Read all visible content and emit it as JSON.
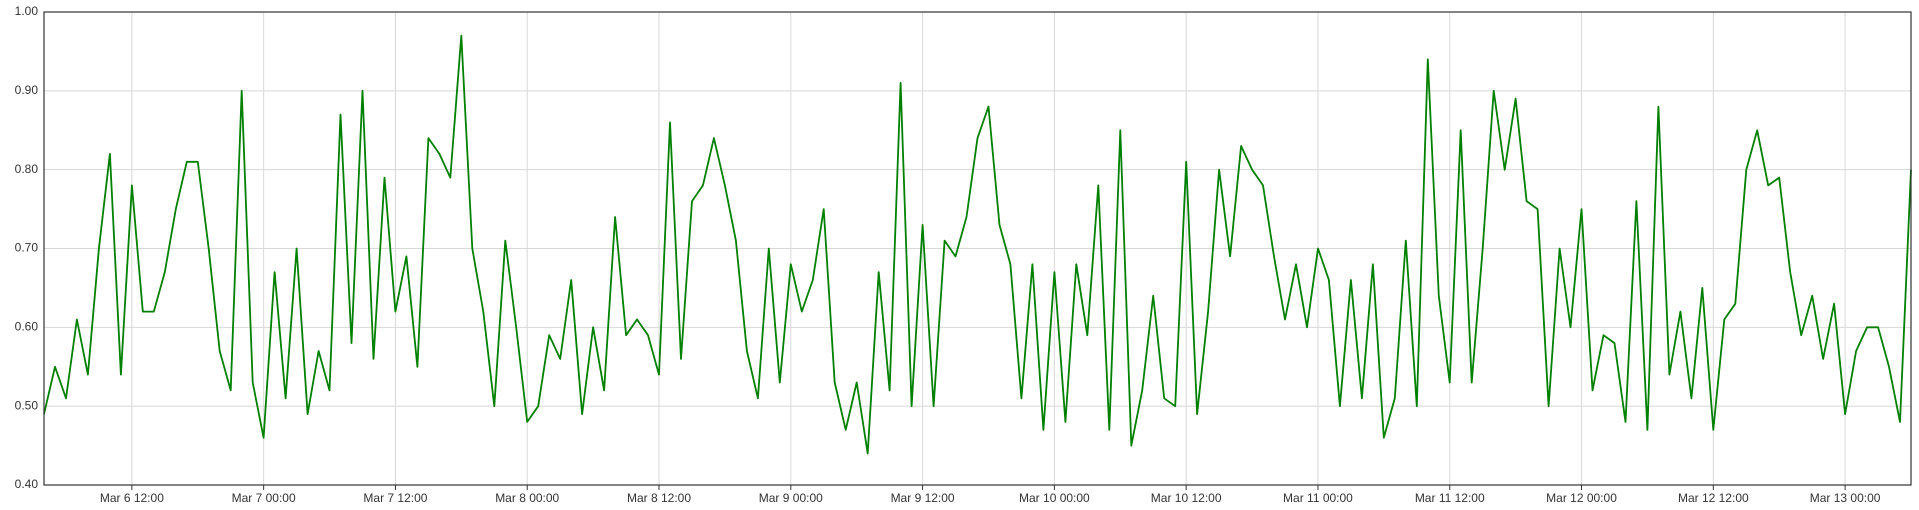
{
  "chart_data": {
    "type": "line",
    "x": [
      "Mar 6 04:00",
      "Mar 6 05:00",
      "Mar 6 06:00",
      "Mar 6 07:00",
      "Mar 6 08:00",
      "Mar 6 09:00",
      "Mar 6 10:00",
      "Mar 6 11:00",
      "Mar 6 12:00",
      "Mar 6 13:00",
      "Mar 6 14:00",
      "Mar 6 15:00",
      "Mar 6 16:00",
      "Mar 6 17:00",
      "Mar 6 18:00",
      "Mar 6 19:00",
      "Mar 6 20:00",
      "Mar 6 21:00",
      "Mar 6 22:00",
      "Mar 6 23:00",
      "Mar 7 00:00",
      "Mar 7 01:00",
      "Mar 7 02:00",
      "Mar 7 03:00",
      "Mar 7 04:00",
      "Mar 7 05:00",
      "Mar 7 06:00",
      "Mar 7 07:00",
      "Mar 7 08:00",
      "Mar 7 09:00",
      "Mar 7 10:00",
      "Mar 7 11:00",
      "Mar 7 12:00",
      "Mar 7 13:00",
      "Mar 7 14:00",
      "Mar 7 15:00",
      "Mar 7 16:00",
      "Mar 7 17:00",
      "Mar 7 18:00",
      "Mar 7 19:00",
      "Mar 7 20:00",
      "Mar 7 21:00",
      "Mar 7 22:00",
      "Mar 7 23:00",
      "Mar 8 00:00",
      "Mar 8 01:00",
      "Mar 8 02:00",
      "Mar 8 03:00",
      "Mar 8 04:00",
      "Mar 8 05:00",
      "Mar 8 06:00",
      "Mar 8 07:00",
      "Mar 8 08:00",
      "Mar 8 09:00",
      "Mar 8 10:00",
      "Mar 8 11:00",
      "Mar 8 12:00",
      "Mar 8 13:00",
      "Mar 8 14:00",
      "Mar 8 15:00",
      "Mar 8 16:00",
      "Mar 8 17:00",
      "Mar 8 18:00",
      "Mar 8 19:00",
      "Mar 8 20:00",
      "Mar 8 21:00",
      "Mar 8 22:00",
      "Mar 8 23:00",
      "Mar 9 00:00",
      "Mar 9 01:00",
      "Mar 9 02:00",
      "Mar 9 03:00",
      "Mar 9 04:00",
      "Mar 9 05:00",
      "Mar 9 06:00",
      "Mar 9 07:00",
      "Mar 9 08:00",
      "Mar 9 09:00",
      "Mar 9 10:00",
      "Mar 9 11:00",
      "Mar 9 12:00",
      "Mar 9 13:00",
      "Mar 9 14:00",
      "Mar 9 15:00",
      "Mar 9 16:00",
      "Mar 9 17:00",
      "Mar 9 18:00",
      "Mar 9 19:00",
      "Mar 9 20:00",
      "Mar 9 21:00",
      "Mar 9 22:00",
      "Mar 9 23:00",
      "Mar 10 00:00",
      "Mar 10 01:00",
      "Mar 10 02:00",
      "Mar 10 03:00",
      "Mar 10 04:00",
      "Mar 10 05:00",
      "Mar 10 06:00",
      "Mar 10 07:00",
      "Mar 10 08:00",
      "Mar 10 09:00",
      "Mar 10 10:00",
      "Mar 10 11:00",
      "Mar 10 12:00",
      "Mar 10 13:00",
      "Mar 10 14:00",
      "Mar 10 15:00",
      "Mar 10 16:00",
      "Mar 10 17:00",
      "Mar 10 18:00",
      "Mar 10 19:00",
      "Mar 10 20:00",
      "Mar 10 21:00",
      "Mar 10 22:00",
      "Mar 10 23:00",
      "Mar 11 00:00",
      "Mar 11 01:00",
      "Mar 11 02:00",
      "Mar 11 03:00",
      "Mar 11 04:00",
      "Mar 11 05:00",
      "Mar 11 06:00",
      "Mar 11 07:00",
      "Mar 11 08:00",
      "Mar 11 09:00",
      "Mar 11 10:00",
      "Mar 11 11:00",
      "Mar 11 12:00",
      "Mar 11 13:00",
      "Mar 11 14:00",
      "Mar 11 15:00",
      "Mar 11 16:00",
      "Mar 11 17:00",
      "Mar 11 18:00",
      "Mar 11 19:00",
      "Mar 11 20:00",
      "Mar 11 21:00",
      "Mar 11 22:00",
      "Mar 11 23:00",
      "Mar 12 00:00",
      "Mar 12 01:00",
      "Mar 12 02:00",
      "Mar 12 03:00",
      "Mar 12 04:00",
      "Mar 12 05:00",
      "Mar 12 06:00",
      "Mar 12 07:00",
      "Mar 12 08:00",
      "Mar 12 09:00",
      "Mar 12 10:00",
      "Mar 12 11:00",
      "Mar 12 12:00",
      "Mar 12 13:00",
      "Mar 12 14:00",
      "Mar 12 15:00",
      "Mar 12 16:00",
      "Mar 12 17:00",
      "Mar 12 18:00",
      "Mar 12 19:00",
      "Mar 12 20:00",
      "Mar 12 21:00",
      "Mar 12 22:00",
      "Mar 12 23:00",
      "Mar 13 00:00",
      "Mar 13 01:00",
      "Mar 13 02:00",
      "Mar 13 03:00",
      "Mar 13 04:00",
      "Mar 13 05:00",
      "Mar 13 06:00"
    ],
    "series": [
      {
        "color": "#008000",
        "values": [
          0.49,
          0.55,
          0.51,
          0.61,
          0.54,
          0.7,
          0.82,
          0.54,
          0.78,
          0.62,
          0.62,
          0.67,
          0.75,
          0.81,
          0.81,
          0.7,
          0.57,
          0.52,
          0.9,
          0.53,
          0.46,
          0.67,
          0.51,
          0.7,
          0.49,
          0.57,
          0.52,
          0.87,
          0.58,
          0.9,
          0.56,
          0.79,
          0.62,
          0.69,
          0.55,
          0.84,
          0.82,
          0.79,
          0.97,
          0.7,
          0.62,
          0.5,
          0.71,
          0.6,
          0.48,
          0.5,
          0.59,
          0.56,
          0.66,
          0.49,
          0.6,
          0.52,
          0.74,
          0.59,
          0.61,
          0.59,
          0.54,
          0.86,
          0.56,
          0.76,
          0.78,
          0.84,
          0.78,
          0.71,
          0.57,
          0.51,
          0.7,
          0.53,
          0.68,
          0.62,
          0.66,
          0.75,
          0.53,
          0.47,
          0.53,
          0.44,
          0.67,
          0.52,
          0.91,
          0.5,
          0.73,
          0.5,
          0.71,
          0.69,
          0.74,
          0.84,
          0.88,
          0.73,
          0.68,
          0.51,
          0.68,
          0.47,
          0.67,
          0.48,
          0.68,
          0.59,
          0.78,
          0.47,
          0.85,
          0.45,
          0.52,
          0.64,
          0.51,
          0.5,
          0.81,
          0.49,
          0.62,
          0.8,
          0.69,
          0.83,
          0.8,
          0.78,
          0.69,
          0.61,
          0.68,
          0.6,
          0.7,
          0.66,
          0.5,
          0.66,
          0.51,
          0.68,
          0.46,
          0.51,
          0.71,
          0.5,
          0.94,
          0.64,
          0.53,
          0.85,
          0.53,
          0.7,
          0.9,
          0.8,
          0.89,
          0.76,
          0.75,
          0.5,
          0.7,
          0.6,
          0.75,
          0.52,
          0.59,
          0.58,
          0.48,
          0.76,
          0.47,
          0.88,
          0.54,
          0.62,
          0.51,
          0.65,
          0.47,
          0.61,
          0.63,
          0.8,
          0.85,
          0.78,
          0.79,
          0.67,
          0.59,
          0.64,
          0.56,
          0.63,
          0.49,
          0.57,
          0.6,
          0.6,
          0.55,
          0.48,
          0.8
        ]
      }
    ],
    "xlim": [
      "Mar 6 04:00",
      "Mar 13 06:00"
    ],
    "xticks": [
      "Mar 6 12:00",
      "Mar 7 00:00",
      "Mar 7 12:00",
      "Mar 8 00:00",
      "Mar 8 12:00",
      "Mar 9 00:00",
      "Mar 9 12:00",
      "Mar 10 00:00",
      "Mar 10 12:00",
      "Mar 11 00:00",
      "Mar 11 12:00",
      "Mar 12 00:00",
      "Mar 12 12:00",
      "Mar 13 00:00"
    ],
    "ylim": [
      0.4,
      1.0
    ],
    "yticks": [
      {
        "value": 0.4,
        "label": "0.40"
      },
      {
        "value": 0.5,
        "label": "0.50"
      },
      {
        "value": 0.6,
        "label": "0.60"
      },
      {
        "value": 0.7,
        "label": "0.70"
      },
      {
        "value": 0.8,
        "label": "0.80"
      },
      {
        "value": 0.9,
        "label": "0.90"
      },
      {
        "value": 1.0,
        "label": "1.00"
      }
    ],
    "grid": true
  }
}
